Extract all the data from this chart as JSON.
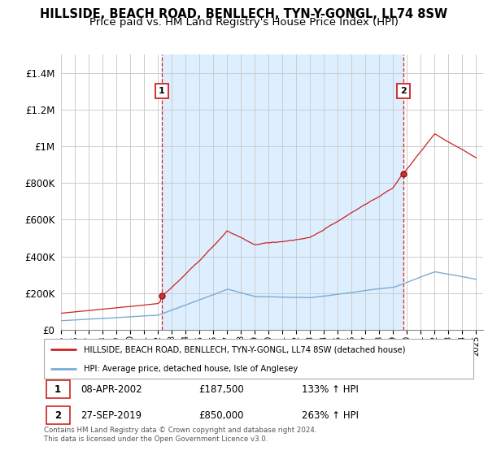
{
  "title": "HILLSIDE, BEACH ROAD, BENLLECH, TYN-Y-GONGL, LL74 8SW",
  "subtitle": "Price paid vs. HM Land Registry's House Price Index (HPI)",
  "title_fontsize": 10.5,
  "subtitle_fontsize": 9.5,
  "ylim": [
    0,
    1500000
  ],
  "yticks": [
    0,
    200000,
    400000,
    600000,
    800000,
    1000000,
    1200000,
    1400000
  ],
  "ytick_labels": [
    "£0",
    "£200K",
    "£400K",
    "£600K",
    "£800K",
    "£1M",
    "£1.2M",
    "£1.4M"
  ],
  "hpi_color": "#7aadd4",
  "price_color": "#cc2222",
  "dashed_line_color": "#cc2222",
  "fill_color": "#ddeeff",
  "grid_color": "#cccccc",
  "background_color": "#ffffff",
  "sale1_year": 2002.29,
  "sale1_price": 187500,
  "sale1_date": "08-APR-2002",
  "sale1_label": "133% ↑ HPI",
  "sale2_year": 2019.75,
  "sale2_price": 850000,
  "sale2_date": "27-SEP-2019",
  "sale2_label": "263% ↑ HPI",
  "legend_line1": "HILLSIDE, BEACH ROAD, BENLLECH, TYN-Y-GONGL, LL74 8SW (detached house)",
  "legend_line2": "HPI: Average price, detached house, Isle of Anglesey",
  "footnote": "Contains HM Land Registry data © Crown copyright and database right 2024.\nThis data is licensed under the Open Government Licence v3.0.",
  "x_start_year": 1995,
  "x_end_year": 2025
}
